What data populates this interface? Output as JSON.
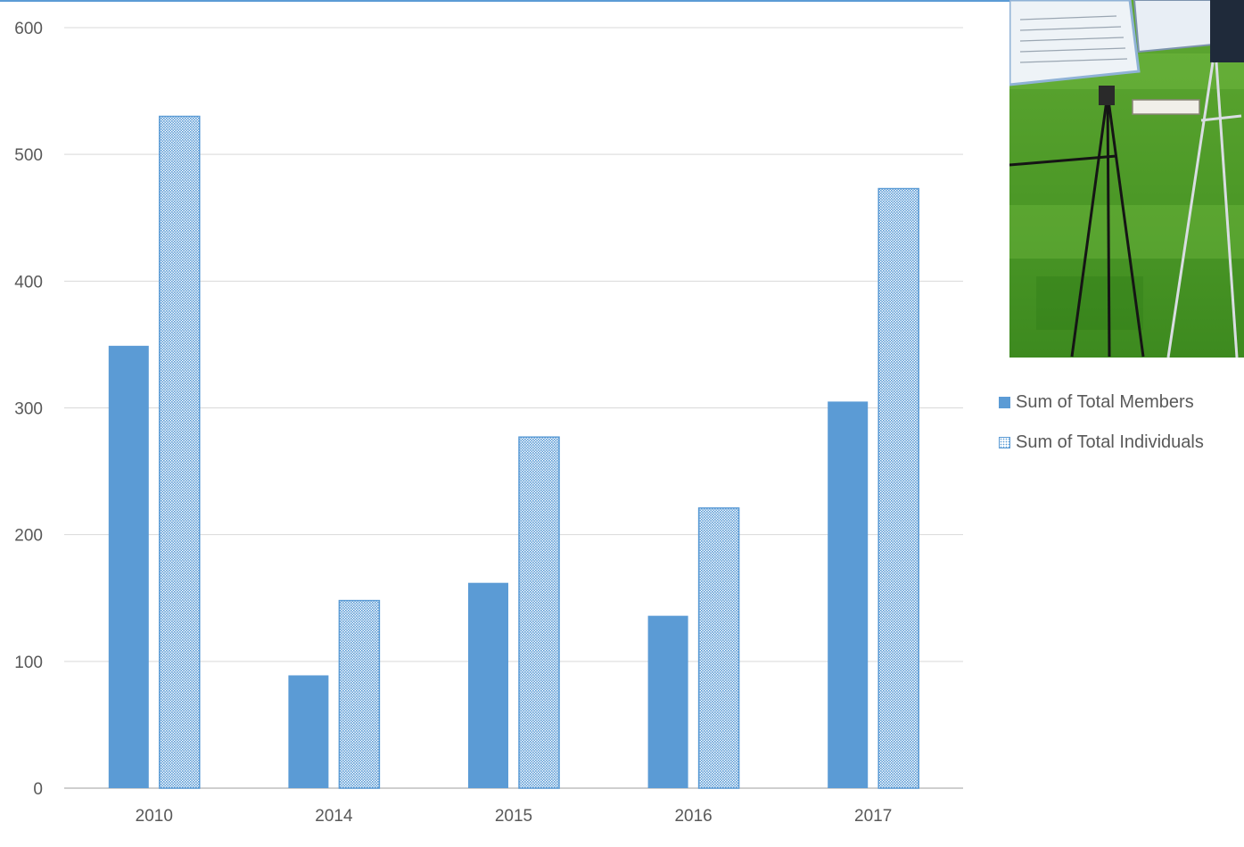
{
  "chart_data": {
    "type": "bar",
    "categories": [
      "2010",
      "2014",
      "2015",
      "2016",
      "2017"
    ],
    "series": [
      {
        "name": "Sum of Total Members",
        "values": [
          349,
          89,
          162,
          136,
          305
        ],
        "color": "#5b9bd5",
        "pattern": "solid"
      },
      {
        "name": "Sum of Total Individuals",
        "values": [
          530,
          148,
          277,
          221,
          473
        ],
        "color": "#5b9bd5",
        "pattern": "dotted"
      }
    ],
    "yticks": [
      "0",
      "100",
      "200",
      "300",
      "400",
      "500",
      "600"
    ],
    "ylim": [
      0,
      600
    ],
    "grid": true,
    "legend": "right"
  },
  "legend_items": [
    {
      "label": "Sum of Total Members"
    },
    {
      "label": "Sum of Total Individuals"
    }
  ],
  "photo": {
    "icon": "photo-easel-on-grass"
  }
}
